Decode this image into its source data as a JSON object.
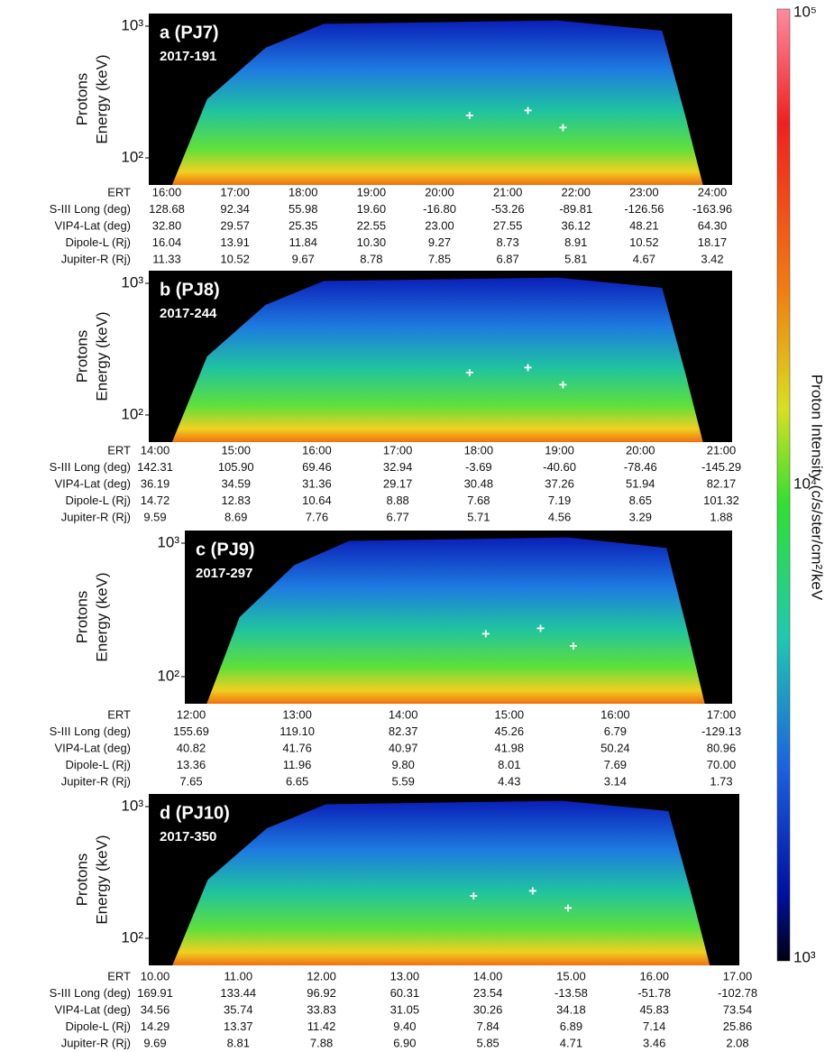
{
  "colorbar": {
    "label": "Proton Intensity (c/s/ster/cm²/keV",
    "ticks": [
      "10⁵",
      "10⁴",
      "10³"
    ]
  },
  "panels": [
    {
      "label": "a (PJ7)",
      "date": "2017-191",
      "y_axis": [
        "Protons",
        "Energy (keV)"
      ],
      "y_ticks": [
        "10³",
        "10²"
      ],
      "table": {
        "rows": [
          [
            "ERT",
            "16:00",
            "17:00",
            "18:00",
            "19:00",
            "20:00",
            "21:00",
            "22:00",
            "23:00",
            "24:00"
          ],
          [
            "S-III Long (deg)",
            "128.68",
            "92.34",
            "55.98",
            "19.60",
            "-16.80",
            "-53.26",
            "-89.81",
            "-126.56",
            "-163.96"
          ],
          [
            "VIP4-Lat (deg)",
            "32.80",
            "29.57",
            "25.35",
            "22.55",
            "23.00",
            "27.55",
            "36.12",
            "48.21",
            "64.30"
          ],
          [
            "Dipole-L (Rj)",
            "16.04",
            "13.91",
            "11.84",
            "10.30",
            "9.27",
            "8.73",
            "8.91",
            "10.52",
            "18.17"
          ],
          [
            "Jupiter-R (Rj)",
            "11.33",
            "10.52",
            "9.67",
            "8.78",
            "7.85",
            "6.87",
            "5.81",
            "4.67",
            "3.42"
          ]
        ]
      }
    },
    {
      "label": "b (PJ8)",
      "date": "2017-244",
      "y_axis": [
        "Protons",
        "Energy (keV)"
      ],
      "y_ticks": [
        "10³",
        "10²"
      ],
      "table": {
        "rows": [
          [
            "ERT",
            "14:00",
            "15:00",
            "16:00",
            "17:00",
            "18:00",
            "19:00",
            "20:00",
            "21:00"
          ],
          [
            "S-III Long (deg)",
            "142.31",
            "105.90",
            "69.46",
            "32.94",
            "-3.69",
            "-40.60",
            "-78.46",
            "-145.29"
          ],
          [
            "VIP4-Lat (deg)",
            "36.19",
            "34.59",
            "31.36",
            "29.17",
            "30.48",
            "37.26",
            "51.94",
            "82.17"
          ],
          [
            "Dipole-L (Rj)",
            "14.72",
            "12.83",
            "10.64",
            "8.88",
            "7.68",
            "7.19",
            "8.65",
            "101.32"
          ],
          [
            "Jupiter-R (Rj)",
            "9.59",
            "8.69",
            "7.76",
            "6.77",
            "5.71",
            "4.56",
            "3.29",
            "1.88"
          ]
        ]
      }
    },
    {
      "label": "c (PJ9)",
      "date": "2017-297",
      "y_axis": [
        "Protons",
        "Energy (keV)"
      ],
      "y_ticks": [
        "10³",
        "10²"
      ],
      "table": {
        "rows": [
          [
            "ERT",
            "12:00",
            "13:00",
            "14:00",
            "15:00",
            "16:00",
            "17:00"
          ],
          [
            "S-III Long (deg)",
            "155.69",
            "119.10",
            "82.37",
            "45.26",
            "6.79",
            "-129.13"
          ],
          [
            "VIP4-Lat (deg)",
            "40.82",
            "41.76",
            "40.97",
            "41.98",
            "50.24",
            "80.96"
          ],
          [
            "Dipole-L (Rj)",
            "13.36",
            "11.96",
            "9.80",
            "8.01",
            "7.69",
            "70.00"
          ],
          [
            "Jupiter-R (Rj)",
            "7.65",
            "6.65",
            "5.59",
            "4.43",
            "3.14",
            "1.73"
          ]
        ]
      }
    },
    {
      "label": "d (PJ10)",
      "date": "2017-350",
      "y_axis": [
        "Protons",
        "Energy (keV)"
      ],
      "y_ticks": [
        "10³",
        "10²"
      ],
      "table": {
        "rows": [
          [
            "ERT",
            "10.00",
            "11.00",
            "12.00",
            "13.00",
            "14.00",
            "15.00",
            "16.00",
            "17.00"
          ],
          [
            "S-III Long (deg)",
            "169.91",
            "133.44",
            "96.92",
            "60.31",
            "23.54",
            "-13.58",
            "-51.78",
            "-102.78"
          ],
          [
            "VIP4-Lat (deg)",
            "34.56",
            "35.74",
            "33.83",
            "31.05",
            "30.26",
            "34.18",
            "45.83",
            "73.54"
          ],
          [
            "Dipole-L (Rj)",
            "14.29",
            "13.37",
            "11.42",
            "9.40",
            "7.84",
            "6.89",
            "7.14",
            "25.86"
          ],
          [
            "Jupiter-R (Rj)",
            "9.69",
            "8.81",
            "7.88",
            "6.90",
            "5.85",
            "4.71",
            "3.46",
            "2.08"
          ]
        ]
      }
    }
  ]
}
